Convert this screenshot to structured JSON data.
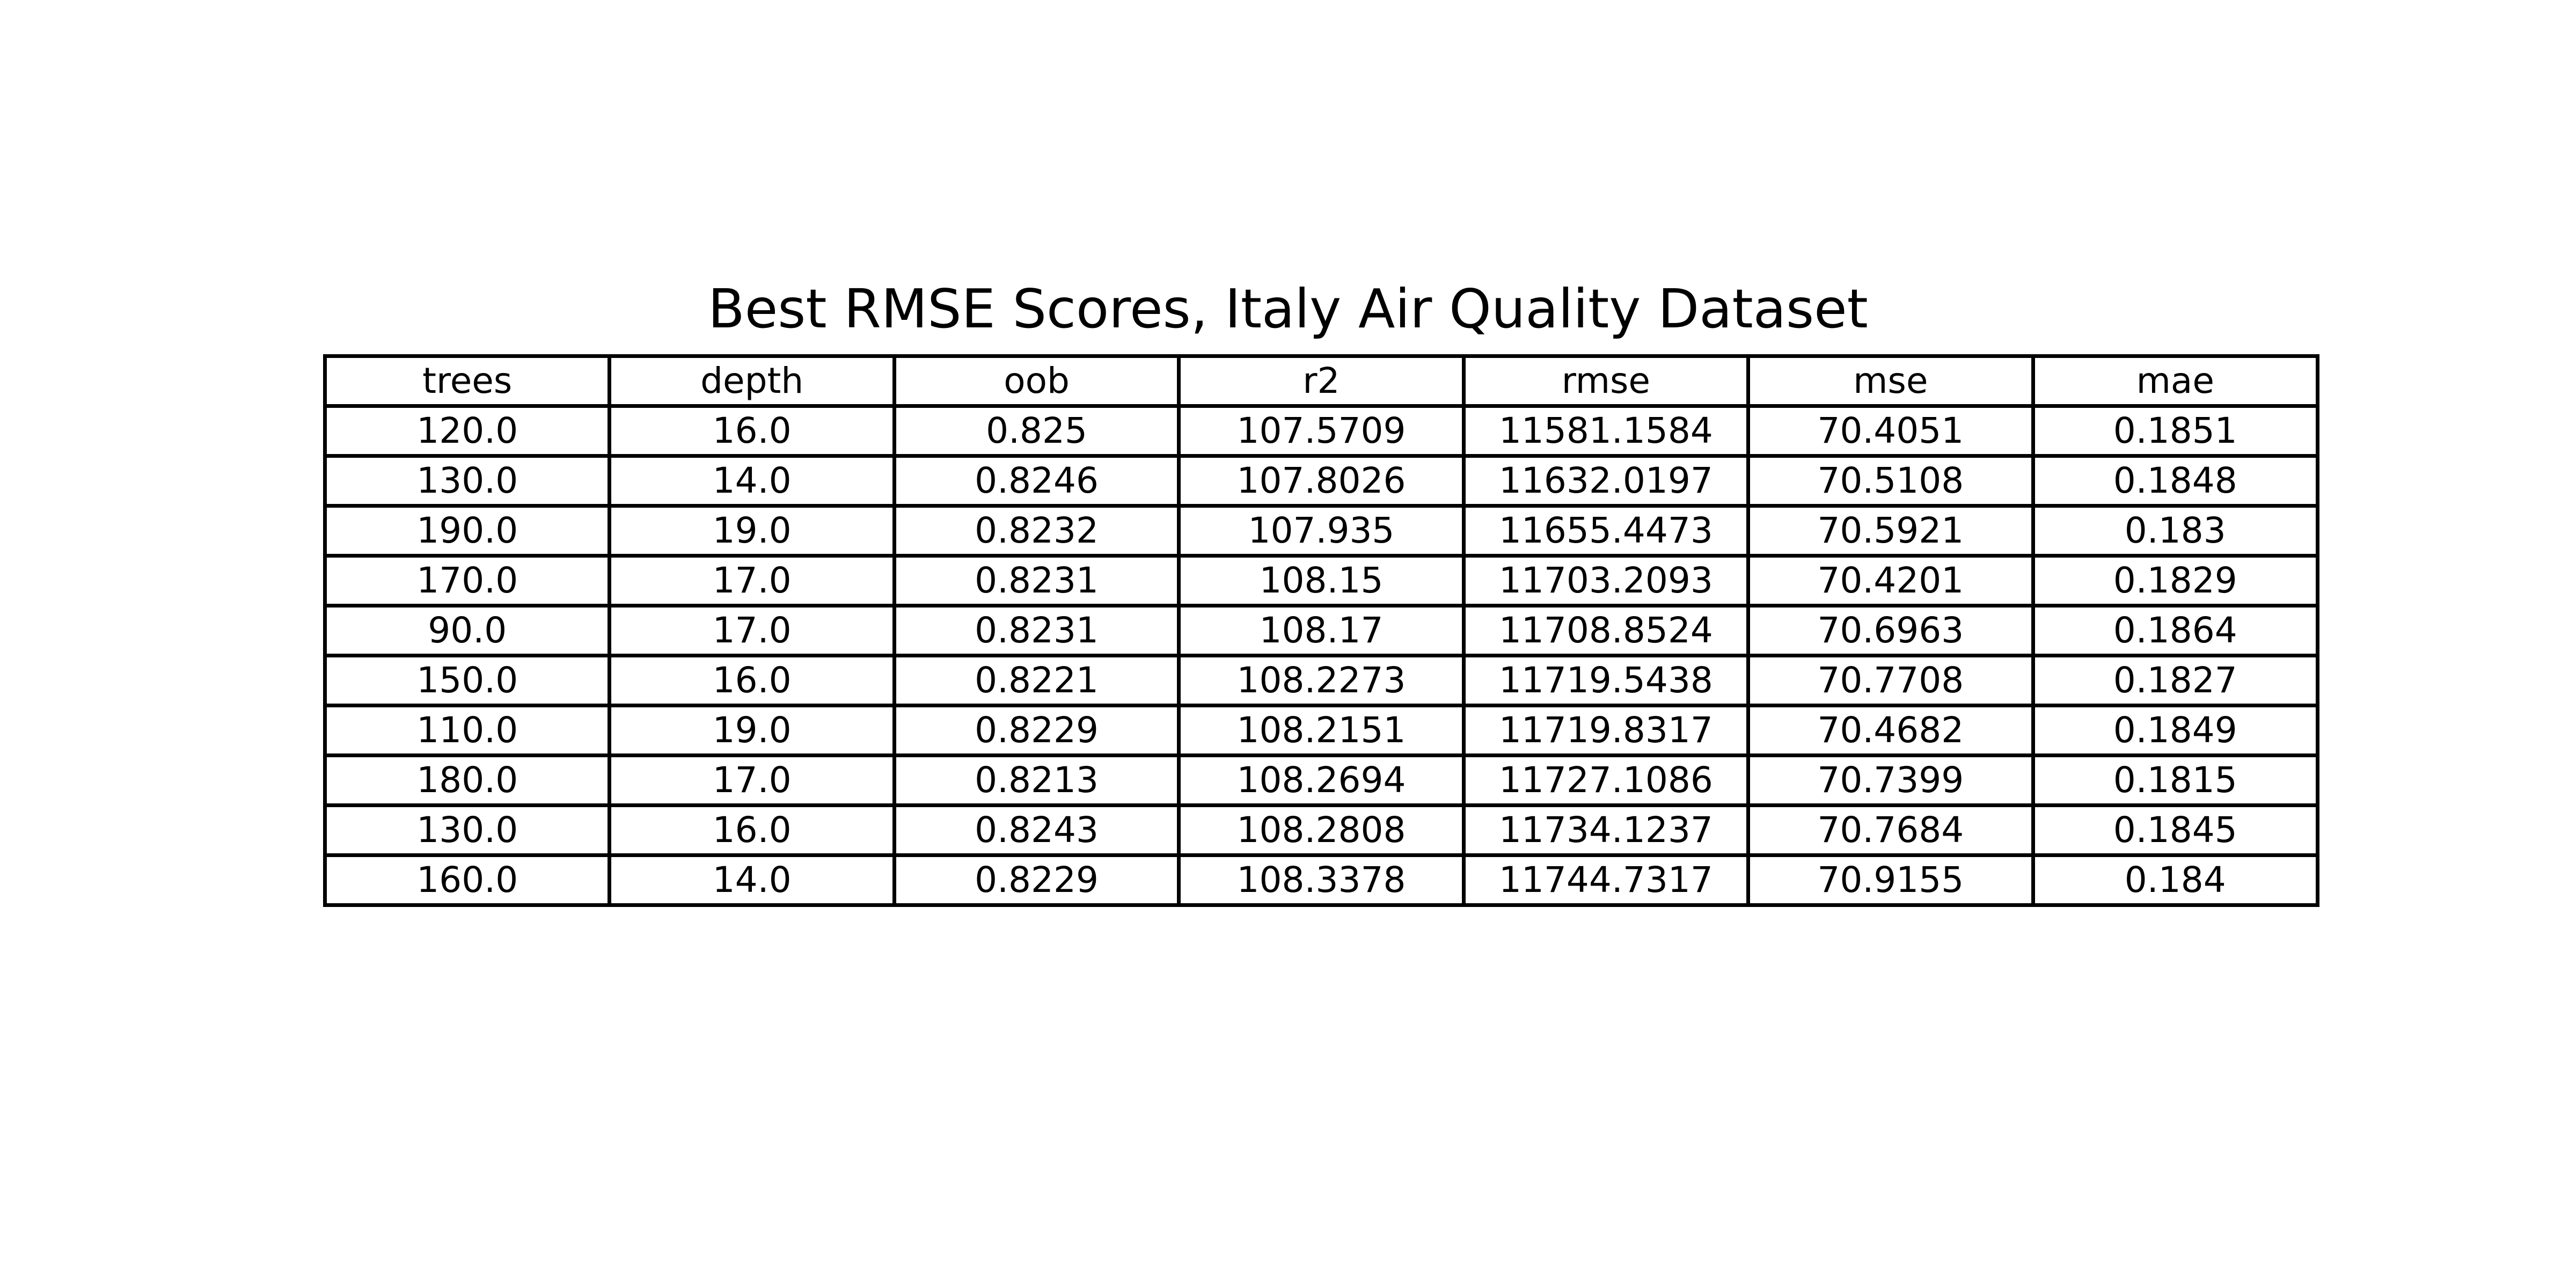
{
  "chart_data": {
    "type": "table",
    "title": "Best RMSE Scores, Italy Air Quality Dataset",
    "columns": [
      "trees",
      "depth",
      "oob",
      "r2",
      "rmse",
      "mse",
      "mae"
    ],
    "rows": [
      [
        "120.0",
        "16.0",
        "0.825",
        "107.5709",
        "11581.1584",
        "70.4051",
        "0.1851"
      ],
      [
        "130.0",
        "14.0",
        "0.8246",
        "107.8026",
        "11632.0197",
        "70.5108",
        "0.1848"
      ],
      [
        "190.0",
        "19.0",
        "0.8232",
        "107.935",
        "11655.4473",
        "70.5921",
        "0.183"
      ],
      [
        "170.0",
        "17.0",
        "0.8231",
        "108.15",
        "11703.2093",
        "70.4201",
        "0.1829"
      ],
      [
        "90.0",
        "17.0",
        "0.8231",
        "108.17",
        "11708.8524",
        "70.6963",
        "0.1864"
      ],
      [
        "150.0",
        "16.0",
        "0.8221",
        "108.2273",
        "11719.5438",
        "70.7708",
        "0.1827"
      ],
      [
        "110.0",
        "19.0",
        "0.8229",
        "108.2151",
        "11719.8317",
        "70.4682",
        "0.1849"
      ],
      [
        "180.0",
        "17.0",
        "0.8213",
        "108.2694",
        "11727.1086",
        "70.7399",
        "0.1815"
      ],
      [
        "130.0",
        "16.0",
        "0.8243",
        "108.2808",
        "11734.1237",
        "70.7684",
        "0.1845"
      ],
      [
        "160.0",
        "14.0",
        "0.8229",
        "108.3378",
        "11744.7317",
        "70.9155",
        "0.184"
      ]
    ]
  }
}
